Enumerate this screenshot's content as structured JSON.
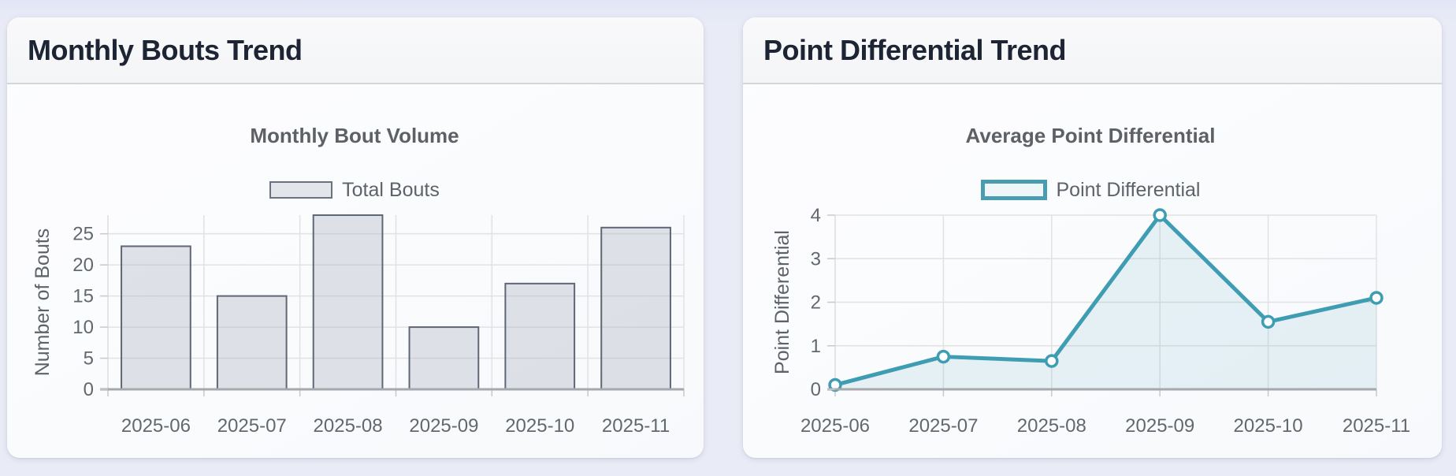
{
  "page": {
    "background": "#e9ebf6",
    "card_background": "#fcfdfe",
    "card_header_background": "#f7f7f9",
    "header_text_color": "#1d2433"
  },
  "cards": [
    {
      "header": "Monthly Bouts Trend"
    },
    {
      "header": "Point Differential Trend"
    }
  ],
  "chart_data": [
    {
      "type": "bar",
      "title": "Monthly Bout Volume",
      "categories": [
        "2025-06",
        "2025-07",
        "2025-08",
        "2025-09",
        "2025-10",
        "2025-11"
      ],
      "series": [
        {
          "name": "Total Bouts",
          "values": [
            23,
            15,
            28,
            10,
            17,
            26
          ]
        }
      ],
      "xlabel": "",
      "ylabel": "Number of Bouts",
      "ylim": [
        0,
        28
      ],
      "yticks": [
        0,
        5,
        10,
        15,
        20,
        25
      ],
      "grid": true,
      "legend_position": "top",
      "colors": {
        "bar_fill": "rgba(170,176,188,0.35)",
        "bar_border": "#5f6774",
        "grid": "#e2e2e2",
        "axis_line": "#a5a8ac",
        "tick_stub": "#c9c9c9",
        "tick_text": "#62686e",
        "axis_title_text": "#5d6368",
        "title_text": "#5d6166"
      }
    },
    {
      "type": "line",
      "title": "Average Point Differential",
      "categories": [
        "2025-06",
        "2025-07",
        "2025-08",
        "2025-09",
        "2025-10",
        "2025-11"
      ],
      "series": [
        {
          "name": "Point Differential",
          "values": [
            0.1,
            0.75,
            0.65,
            4.0,
            1.55,
            2.1
          ]
        }
      ],
      "xlabel": "",
      "ylabel": "Point Differential",
      "ylim": [
        0,
        4
      ],
      "yticks": [
        0,
        1,
        2,
        3,
        4
      ],
      "grid": true,
      "legend_position": "top",
      "colors": {
        "line": "#3f9db3",
        "marker_stroke": "#3f9db3",
        "marker_fill": "#ffffff",
        "area_fill": "rgba(63,157,179,0.11)",
        "grid": "#e2e2e2",
        "axis_line": "#a5a8ac",
        "tick_stub": "#c9c9c9",
        "tick_text": "#62686e",
        "axis_title_text": "#5d6368",
        "title_text": "#5d6166"
      }
    }
  ]
}
